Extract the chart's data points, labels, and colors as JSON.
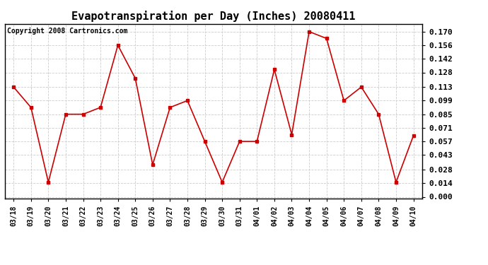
{
  "title": "Evapotranspiration per Day (Inches) 20080411",
  "copyright_text": "Copyright 2008 Cartronics.com",
  "x_labels": [
    "03/18",
    "03/19",
    "03/20",
    "03/21",
    "03/22",
    "03/23",
    "03/24",
    "03/25",
    "03/26",
    "03/27",
    "03/28",
    "03/29",
    "03/30",
    "03/31",
    "04/01",
    "04/02",
    "04/03",
    "04/04",
    "04/05",
    "04/06",
    "04/07",
    "04/08",
    "04/09",
    "04/10"
  ],
  "y_values": [
    0.113,
    0.092,
    0.015,
    0.085,
    0.085,
    0.092,
    0.156,
    0.122,
    0.033,
    0.092,
    0.099,
    0.057,
    0.015,
    0.057,
    0.057,
    0.131,
    0.064,
    0.17,
    0.163,
    0.099,
    0.113,
    0.085,
    0.015,
    0.063
  ],
  "line_color": "#cc0000",
  "marker": "s",
  "marker_size": 3,
  "line_width": 1.2,
  "y_ticks": [
    0.0,
    0.014,
    0.028,
    0.043,
    0.057,
    0.071,
    0.085,
    0.099,
    0.113,
    0.128,
    0.142,
    0.156,
    0.17
  ],
  "ylim": [
    -0.002,
    0.178
  ],
  "background_color": "#ffffff",
  "grid_color": "#cccccc",
  "title_fontsize": 11,
  "tick_fontsize": 7,
  "copyright_fontsize": 7,
  "ytick_fontsize": 8
}
